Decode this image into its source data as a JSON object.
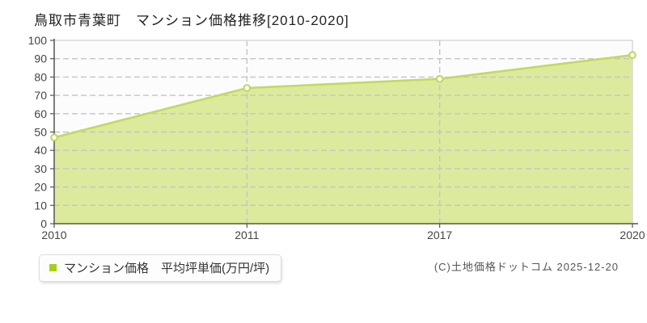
{
  "header": {
    "title": "鳥取市青葉町　マンション価格推移[2010-2020]"
  },
  "chart_data": {
    "type": "area",
    "title": "鳥取市青葉町　マンション価格推移[2010-2020]",
    "categories": [
      "2010",
      "2011",
      "2017",
      "2020"
    ],
    "series": [
      {
        "name": "マンション価格　平均坪単価(万円/坪)",
        "values": [
          47,
          74,
          79,
          92
        ]
      }
    ],
    "xlabel": "",
    "ylabel": "",
    "unit": "万円/坪",
    "ylim": [
      0,
      100
    ],
    "yticks": [
      0,
      10,
      20,
      30,
      40,
      50,
      60,
      70,
      80,
      90,
      100
    ],
    "grid": true,
    "legend_position": "bottom-left",
    "colors": {
      "area_fill": "#dcea9e",
      "line": "#c2da5e",
      "marker_fill": "#ffffff",
      "marker_stroke": "#bdd756",
      "grid": "#c4c4c4",
      "axis": "#555555",
      "plot_bg": "#fcfcfc",
      "border": "#d9d9d9",
      "tick_text": "#444444"
    }
  },
  "legend": {
    "marker_color": "#a6d016",
    "label": "マンション価格　平均坪単価(万円/坪)"
  },
  "footer": {
    "copyright": "(C)土地価格ドットコム 2025-12-20"
  }
}
